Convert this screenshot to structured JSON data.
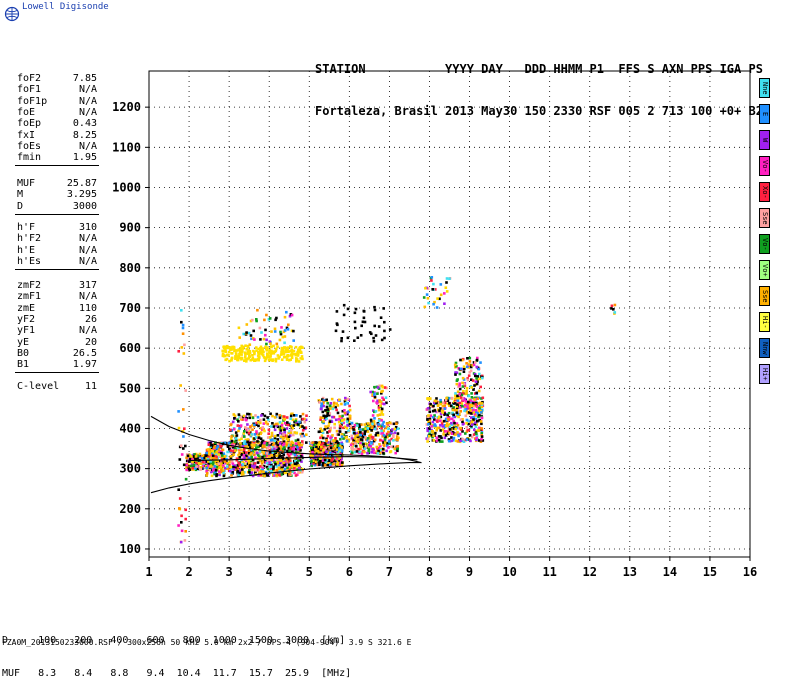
{
  "app": {
    "logo_text": "Lowell Digisonde",
    "header_line1": "STATION           YYYY DAY   DDD HHMM P1  FFS S AXN PPS IGA PS",
    "header_line2": "Fortaleza, Brasil 2013 May30 150 2330 RSF 005 2 713 100 +0+ B2",
    "footer": "FZA0M_2013150233000.RSF / 300x256h 50 kHz 5.0 km 2x2 / DPS-4 (904-904)  3.9 S 321.6 E"
  },
  "params": {
    "group1": [
      {
        "label": "foF2",
        "value": "7.85"
      },
      {
        "label": "foF1",
        "value": "N/A"
      },
      {
        "label": "foF1p",
        "value": "N/A"
      },
      {
        "label": "foE",
        "value": "N/A"
      },
      {
        "label": "foEp",
        "value": "0.43"
      },
      {
        "label": "fxI",
        "value": "8.25"
      },
      {
        "label": "foEs",
        "value": "N/A"
      },
      {
        "label": "fmin",
        "value": "1.95"
      }
    ],
    "group2": [
      {
        "label": "MUF",
        "value": "25.87"
      },
      {
        "label": "M",
        "value": "3.295"
      },
      {
        "label": "D",
        "value": "3000"
      }
    ],
    "group3": [
      {
        "label": "h'F",
        "value": "310"
      },
      {
        "label": "h'F2",
        "value": "N/A"
      },
      {
        "label": "h'E",
        "value": "N/A"
      },
      {
        "label": "h'Es",
        "value": "N/A"
      }
    ],
    "group4": [
      {
        "label": "zmF2",
        "value": "317"
      },
      {
        "label": "zmF1",
        "value": "N/A"
      },
      {
        "label": "zmE",
        "value": "110"
      },
      {
        "label": "yF2",
        "value": "26"
      },
      {
        "label": "yF1",
        "value": "N/A"
      },
      {
        "label": "yE",
        "value": "20"
      },
      {
        "label": "B0",
        "value": "26.5"
      },
      {
        "label": "B1",
        "value": "1.97"
      }
    ],
    "group5": [
      {
        "label": "C-level",
        "value": "11"
      }
    ]
  },
  "muf_table": {
    "row1": "D     100   200   400   600   800  1000  1500  3000  [km]",
    "row2": "MUF   8.3   8.4   8.8   9.4  10.4  11.7  15.7  25.9  [MHz]"
  },
  "legend": [
    {
      "label": "Nne",
      "color": "#40e0f0"
    },
    {
      "label": "E",
      "color": "#2090ff"
    },
    {
      "label": "W",
      "color": "#a020f0"
    },
    {
      "label": "Vo-",
      "color": "#ff20c0"
    },
    {
      "label": "Xo-",
      "color": "#ff2040"
    },
    {
      "label": "Sse",
      "color": "#ffa0a0"
    },
    {
      "label": "Vo-",
      "color": "#10a020"
    },
    {
      "label": "Vo+",
      "color": "#a0ff80"
    },
    {
      "label": "Sse",
      "color": "#ffb000"
    },
    {
      "label": "Hi-",
      "color": "#ffff40"
    },
    {
      "label": "Nnw",
      "color": "#1060c0"
    },
    {
      "label": "Hi+",
      "color": "#b0a0ff"
    }
  ],
  "chart_data": {
    "type": "scatter",
    "xlim": [
      1,
      16
    ],
    "ylim": [
      80,
      1290
    ],
    "x_ticks": [
      "1",
      "2",
      "3",
      "4",
      "5",
      "6",
      "7",
      "8",
      "9",
      "10",
      "11",
      "12",
      "13",
      "14",
      "15",
      "16"
    ],
    "y_ticks": [
      "100",
      "200",
      "300",
      "400",
      "500",
      "600",
      "700",
      "800",
      "900",
      "1000",
      "1100",
      "1200"
    ],
    "grid": true,
    "clusters": [
      {
        "x": [
          1.9,
          2.6
        ],
        "y": [
          300,
          340
        ],
        "n": 260,
        "color": "mixed"
      },
      {
        "x": [
          2.4,
          4.8
        ],
        "y": [
          285,
          370
        ],
        "n": 900,
        "color": "mixed"
      },
      {
        "x": [
          3.0,
          4.9
        ],
        "y": [
          360,
          440
        ],
        "n": 320,
        "color": "mixed"
      },
      {
        "x": [
          5.0,
          5.8
        ],
        "y": [
          310,
          370
        ],
        "n": 500,
        "color": "mixed"
      },
      {
        "x": [
          5.2,
          6.0
        ],
        "y": [
          370,
          480
        ],
        "n": 180,
        "color": "mixed"
      },
      {
        "x": [
          6.0,
          7.2
        ],
        "y": [
          340,
          420
        ],
        "n": 300,
        "color": "mixed"
      },
      {
        "x": [
          6.5,
          6.9
        ],
        "y": [
          420,
          510
        ],
        "n": 60,
        "color": "mixed"
      },
      {
        "x": [
          7.9,
          9.3
        ],
        "y": [
          370,
          480
        ],
        "n": 420,
        "color": "mixed"
      },
      {
        "x": [
          8.6,
          9.3
        ],
        "y": [
          440,
          580
        ],
        "n": 160,
        "color": "mixed"
      },
      {
        "x": [
          2.8,
          4.8
        ],
        "y": [
          570,
          610
        ],
        "n": 260,
        "color": "#ffe000"
      },
      {
        "x": [
          3.2,
          4.6
        ],
        "y": [
          610,
          700
        ],
        "n": 60,
        "color": "mixed"
      },
      {
        "x": [
          5.5,
          7.0
        ],
        "y": [
          620,
          720
        ],
        "n": 40,
        "color": "black"
      },
      {
        "x": [
          7.8,
          8.7
        ],
        "y": [
          700,
          780
        ],
        "n": 30,
        "color": "mixed"
      },
      {
        "x": [
          1.7,
          1.9
        ],
        "y": [
          120,
          720
        ],
        "n": 40,
        "color": "mixed"
      },
      {
        "x": [
          12.5,
          12.6
        ],
        "y": [
          680,
          720
        ],
        "n": 6,
        "color": "mixed"
      }
    ],
    "fitted_curves": [
      {
        "x": [
          1.05,
          1.5,
          2.0,
          2.5,
          3.0,
          3.5,
          4.0,
          4.5,
          5.0,
          5.5,
          6.0,
          6.5,
          7.0,
          7.5,
          7.8
        ],
        "y": [
          430,
          405,
          385,
          370,
          358,
          350,
          344,
          340,
          337,
          335,
          334,
          332,
          329,
          322,
          315
        ]
      },
      {
        "x": [
          1.05,
          1.5,
          2.0,
          2.5,
          3.0,
          3.5,
          4.0,
          4.5,
          5.0,
          5.5,
          6.0,
          6.5,
          7.0,
          7.5,
          7.8
        ],
        "y": [
          240,
          252,
          262,
          270,
          277,
          283,
          289,
          294,
          299,
          303,
          307,
          310,
          313,
          315,
          315
        ]
      },
      {
        "x": [
          2.0,
          3.0,
          4.0,
          5.0,
          6.0,
          7.0,
          7.7
        ],
        "y": [
          320,
          322,
          325,
          328,
          330,
          328,
          322
        ]
      }
    ]
  }
}
